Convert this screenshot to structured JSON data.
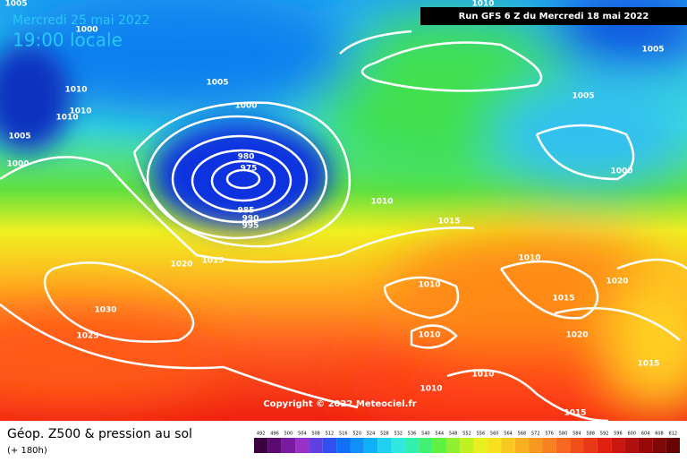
{
  "header": {
    "date": "Mercredi 25 mai 2022",
    "time": "19:00 locale",
    "run": "Run GFS 6 Z du Mercredi 18 mai 2022"
  },
  "copyright": "Copyright © 2022 Meteociel.fr",
  "footer": {
    "title": "Géop. Z500 & pression au sol",
    "lead": "(+ 180h)"
  },
  "scale": [
    492,
    496,
    500,
    504,
    508,
    512,
    516,
    520,
    524,
    528,
    532,
    536,
    540,
    544,
    548,
    552,
    556,
    560,
    564,
    568,
    572,
    576,
    580,
    584,
    588,
    592,
    596,
    600,
    604,
    608,
    612
  ],
  "isobar_labels": [
    1005,
    1000,
    1010,
    1005,
    1010,
    1010,
    1010,
    1005,
    1000,
    1005,
    1000,
    1005,
    1000,
    980,
    975,
    985,
    990,
    995,
    1010,
    1015,
    1020,
    1015,
    1010,
    1010,
    1030,
    1025,
    1010,
    1015,
    1020,
    1020,
    1015,
    1010,
    1010,
    1015
  ]
}
